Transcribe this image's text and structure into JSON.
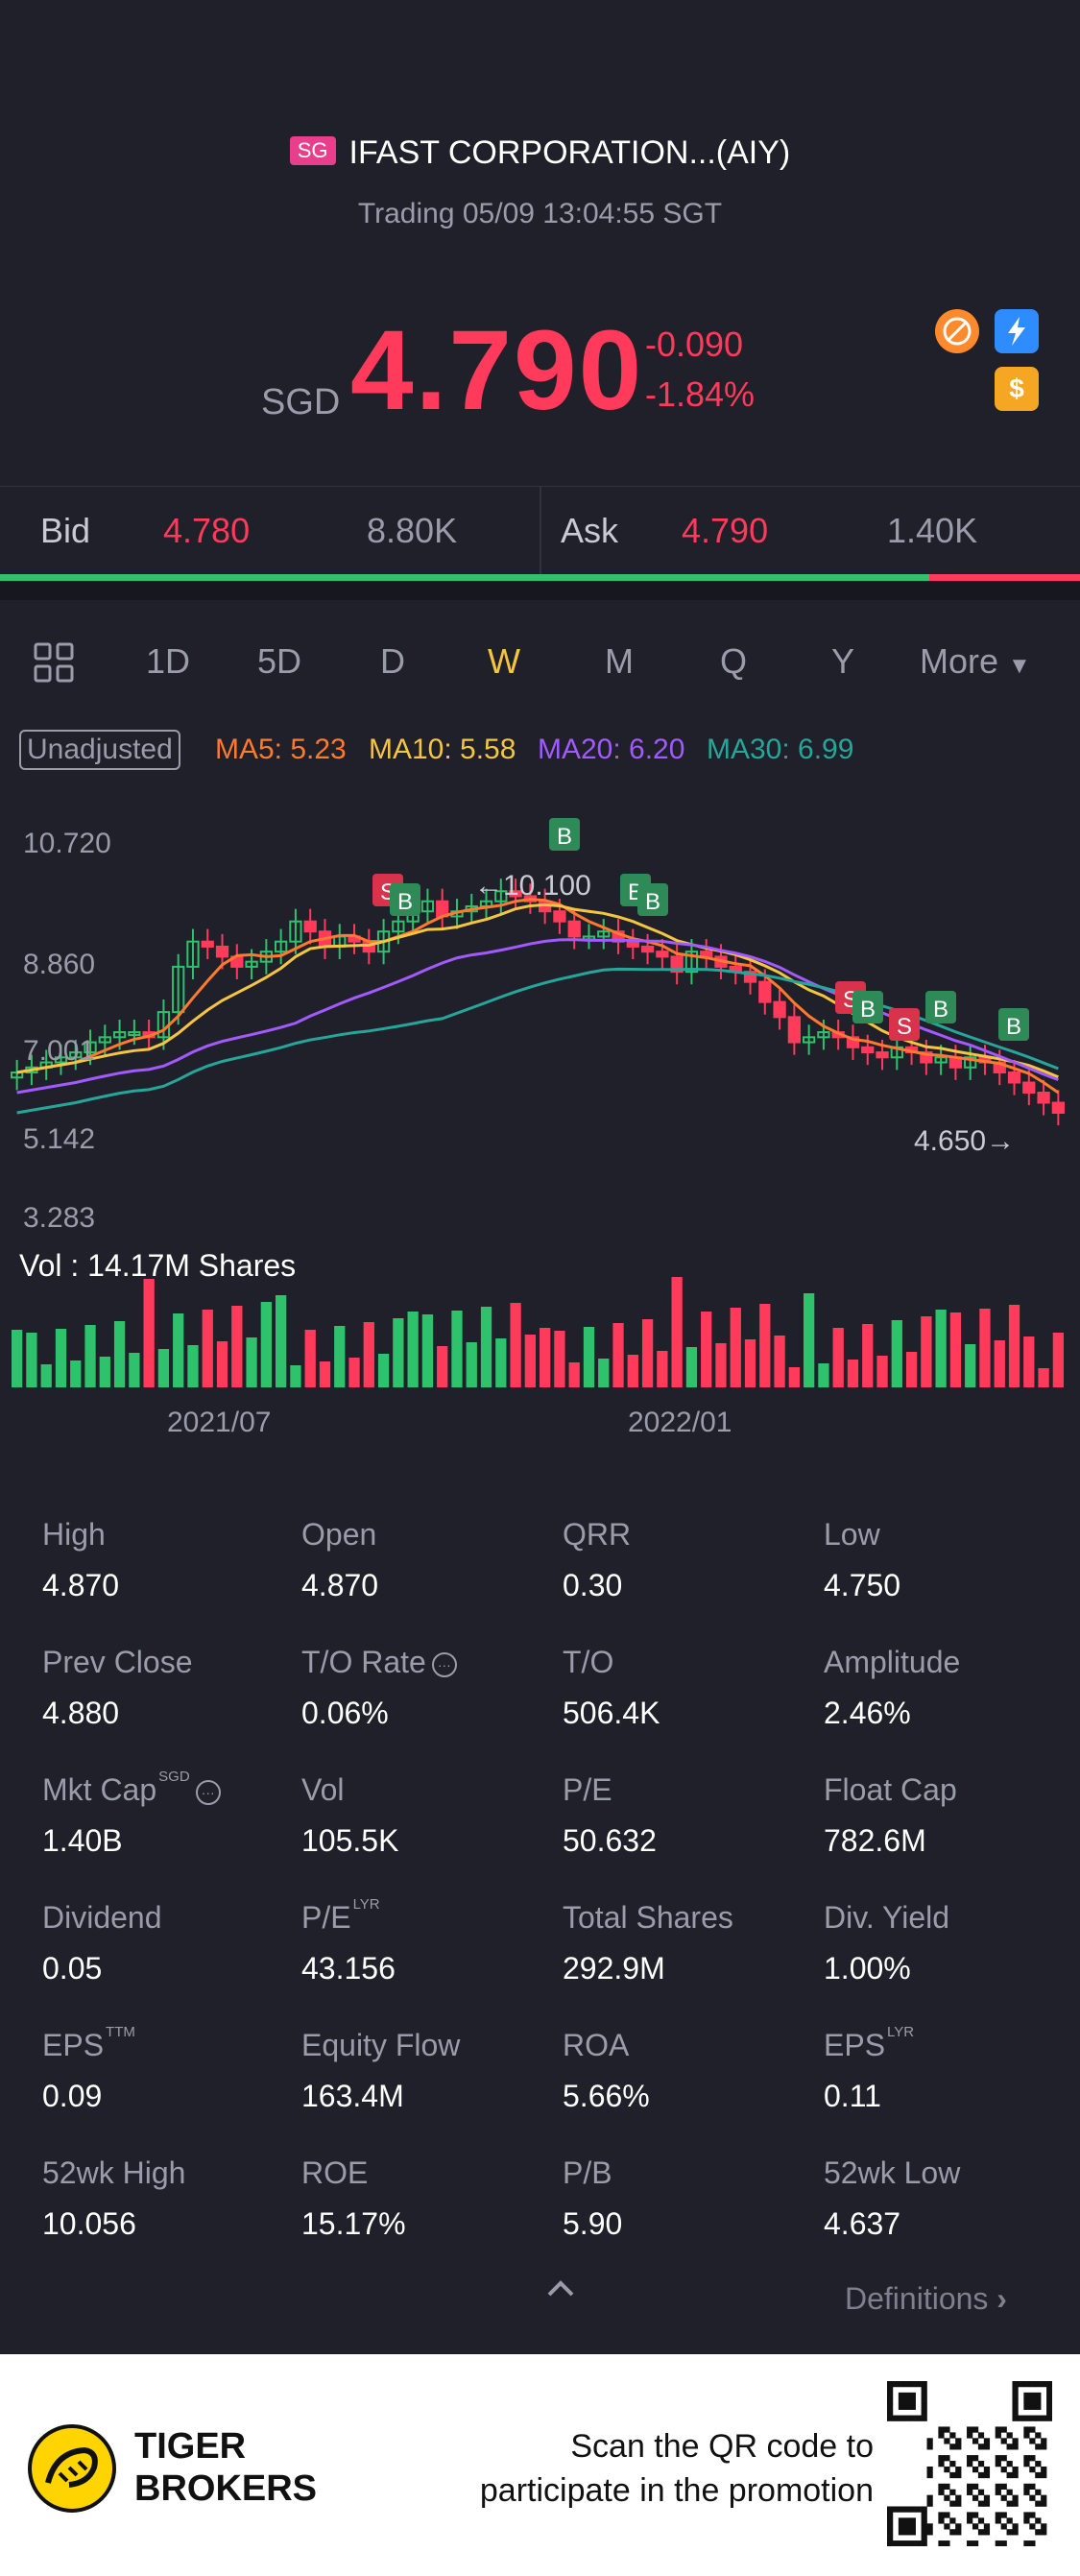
{
  "header": {
    "market_badge": "SG",
    "title": "IFAST CORPORATION...(AIY)",
    "status": "Trading 05/09 13:04:55 SGT",
    "currency": "SGD",
    "price": "4.790",
    "change": "-0.090",
    "change_pct": "-1.84%",
    "icons": [
      "no-shorting-icon",
      "lightning-icon",
      "dollar-icon"
    ]
  },
  "bidask": {
    "bid_label": "Bid",
    "bid_price": "4.780",
    "bid_size": "8.80K",
    "ask_label": "Ask",
    "ask_price": "4.790",
    "ask_size": "1.40K",
    "bid_ratio": 0.86
  },
  "tabs": [
    "1D",
    "5D",
    "D",
    "W",
    "M",
    "Q",
    "Y",
    "More"
  ],
  "active_tab": "W",
  "chart_header": {
    "adjust": "Unadjusted",
    "ma5": "MA5: 5.23",
    "ma10": "MA10: 5.58",
    "ma20": "MA20: 6.20",
    "ma30": "MA30: 6.99"
  },
  "colors": {
    "up": "#2dc26b",
    "down": "#ff3a5a",
    "ma5": "#ff7a2e",
    "ma10": "#f5c542",
    "ma20": "#a259ff",
    "ma30": "#26a69a"
  },
  "chart_data": {
    "type": "candlestick",
    "y_ticks": [
      "10.720",
      "8.860",
      "7.001",
      "5.142",
      "3.283"
    ],
    "ylim": [
      3.283,
      10.72
    ],
    "annotations": {
      "high": "←10.100",
      "low": "4.650→"
    },
    "volume_label": "Vol  : 14.17M Shares",
    "x_ticks": [
      "2021/07",
      "2022/01"
    ],
    "markers": [
      "B",
      "S",
      "B",
      "B",
      "B",
      "S",
      "B",
      "S",
      "B",
      "B"
    ]
  },
  "stats": [
    {
      "label": "High",
      "value": "4.870"
    },
    {
      "label": "Open",
      "value": "4.870"
    },
    {
      "label": "QRR",
      "value": "0.30"
    },
    {
      "label": "Low",
      "value": "4.750"
    },
    {
      "label": "Prev Close",
      "value": "4.880"
    },
    {
      "label": "T/O Rate",
      "value": "0.06%",
      "dots": true
    },
    {
      "label": "T/O",
      "value": "506.4K"
    },
    {
      "label": "Amplitude",
      "value": "2.46%"
    },
    {
      "label": "Mkt Cap",
      "value": "1.40B",
      "sup": "SGD",
      "dots": true
    },
    {
      "label": "Vol",
      "value": "105.5K"
    },
    {
      "label": "P/E",
      "value": "50.632"
    },
    {
      "label": "Float Cap",
      "value": "782.6M"
    },
    {
      "label": "Dividend",
      "value": "0.05"
    },
    {
      "label": "P/E",
      "value": "43.156",
      "sup": "LYR"
    },
    {
      "label": "Total Shares",
      "value": "292.9M"
    },
    {
      "label": "Div. Yield",
      "value": "1.00%"
    },
    {
      "label": "EPS",
      "value": "0.09",
      "sup": "TTM"
    },
    {
      "label": "Equity Flow",
      "value": "163.4M"
    },
    {
      "label": "ROA",
      "value": "5.66%"
    },
    {
      "label": "EPS",
      "value": "0.11",
      "sup": "LYR"
    },
    {
      "label": "52wk High",
      "value": "10.056"
    },
    {
      "label": "ROE",
      "value": "15.17%"
    },
    {
      "label": "P/B",
      "value": "5.90"
    },
    {
      "label": "52wk Low",
      "value": "4.637"
    }
  ],
  "definitions": "Definitions",
  "footer": {
    "brand_line1": "TIGER",
    "brand_line2": "BROKERS",
    "scan_line1": "Scan the QR code to",
    "scan_line2": "participate in the promotion"
  }
}
